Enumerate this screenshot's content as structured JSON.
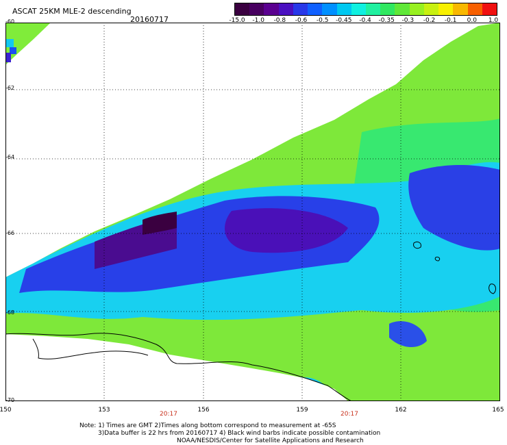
{
  "header": {
    "title": "ASCAT 25KM MLE-2 descending",
    "date": "20160717"
  },
  "colorbar": {
    "labels": [
      "-15.0",
      "-1.0",
      "-0.8",
      "-0.6",
      "-0.5",
      "-0.45",
      "-0.4",
      "-0.35",
      "-0.3",
      "-0.2",
      "-0.1",
      "0.0",
      "1.0"
    ],
    "colors": [
      "#3a0040",
      "#480060",
      "#5a0090",
      "#4a10c0",
      "#2838e8",
      "#1060ff",
      "#0090ff",
      "#00c8f0",
      "#10f0e0",
      "#20f0a0",
      "#30e860",
      "#60e838",
      "#98f020",
      "#c8f010",
      "#f8f000",
      "#f8b800",
      "#f86000",
      "#f01010"
    ]
  },
  "axes": {
    "lat_labels": [
      "-60",
      "-62",
      "-64",
      "-66",
      "-68",
      "-70"
    ],
    "lon_labels": [
      "150",
      "153",
      "156",
      "159",
      "162",
      "165"
    ]
  },
  "time_labels": [
    "20:17",
    "20:17"
  ],
  "notes": {
    "line1": "Note: 1) Times are GMT 2)Times along bottom correspond to measurement at -65S",
    "line2": "3)Data buffer is 22 hrs from 20160717 4) Black wind barbs indicate possible contamination",
    "line3": "NOAA/NESDIS/Center for Satellite Applications and Research"
  }
}
